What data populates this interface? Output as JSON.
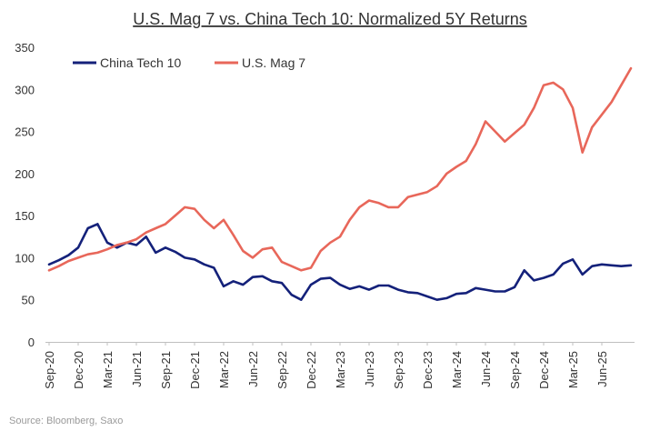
{
  "chart_data": {
    "type": "line",
    "title": "U.S. Mag 7 vs. China Tech 10: Normalized 5Y Returns",
    "source": "Source: Bloomberg, Saxo",
    "xlabel": "",
    "ylabel": "",
    "ylim": [
      0,
      350
    ],
    "yticks": [
      "0",
      "50",
      "100",
      "150",
      "200",
      "250",
      "300",
      "350"
    ],
    "grid": false,
    "legend_position": "top-left",
    "x_tick_labels": [
      "Sep-20",
      "Dec-20",
      "Mar-21",
      "Jun-21",
      "Sep-21",
      "Dec-21",
      "Mar-22",
      "Jun-22",
      "Sep-22",
      "Dec-22",
      "Mar-23",
      "Jun-23",
      "Sep-23",
      "Dec-23",
      "Mar-24",
      "Jun-24",
      "Sep-24",
      "Dec-24",
      "Mar-25",
      "Jun-25"
    ],
    "x": [
      "Sep-20",
      "Oct-20",
      "Nov-20",
      "Dec-20",
      "Jan-21",
      "Feb-21",
      "Mar-21",
      "Apr-21",
      "May-21",
      "Jun-21",
      "Jul-21",
      "Aug-21",
      "Sep-21",
      "Oct-21",
      "Nov-21",
      "Dec-21",
      "Jan-22",
      "Feb-22",
      "Mar-22",
      "Apr-22",
      "May-22",
      "Jun-22",
      "Jul-22",
      "Aug-22",
      "Sep-22",
      "Oct-22",
      "Nov-22",
      "Dec-22",
      "Jan-23",
      "Feb-23",
      "Mar-23",
      "Apr-23",
      "May-23",
      "Jun-23",
      "Jul-23",
      "Aug-23",
      "Sep-23",
      "Oct-23",
      "Nov-23",
      "Dec-23",
      "Jan-24",
      "Feb-24",
      "Mar-24",
      "Apr-24",
      "May-24",
      "Jun-24",
      "Jul-24",
      "Aug-24",
      "Sep-24",
      "Oct-24",
      "Nov-24",
      "Dec-24",
      "Jan-25",
      "Feb-25",
      "Mar-25",
      "Apr-25",
      "May-25",
      "Jun-25",
      "Jul-25",
      "Aug-25",
      "Sep-25"
    ],
    "series": [
      {
        "name": "China Tech 10",
        "color": "#14217a",
        "values": [
          92,
          97,
          103,
          112,
          135,
          140,
          118,
          112,
          118,
          115,
          125,
          106,
          112,
          107,
          100,
          98,
          92,
          88,
          66,
          72,
          68,
          77,
          78,
          72,
          70,
          56,
          50,
          68,
          75,
          76,
          68,
          63,
          66,
          62,
          67,
          67,
          62,
          59,
          58,
          54,
          50,
          52,
          57,
          58,
          64,
          62,
          60,
          60,
          65,
          85,
          73,
          76,
          80,
          93,
          98,
          80,
          90,
          92,
          91,
          90,
          91
        ]
      },
      {
        "name": "U.S. Mag 7",
        "color": "#e8675a",
        "values": [
          85,
          90,
          96,
          100,
          104,
          106,
          110,
          115,
          118,
          122,
          130,
          135,
          140,
          150,
          160,
          158,
          145,
          135,
          145,
          127,
          108,
          100,
          110,
          112,
          95,
          90,
          85,
          88,
          108,
          118,
          125,
          145,
          160,
          168,
          165,
          160,
          160,
          172,
          175,
          178,
          185,
          200,
          208,
          215,
          235,
          262,
          250,
          238,
          248,
          258,
          278,
          305,
          308,
          300,
          278,
          225,
          255,
          270,
          285,
          305,
          325
        ]
      }
    ]
  }
}
